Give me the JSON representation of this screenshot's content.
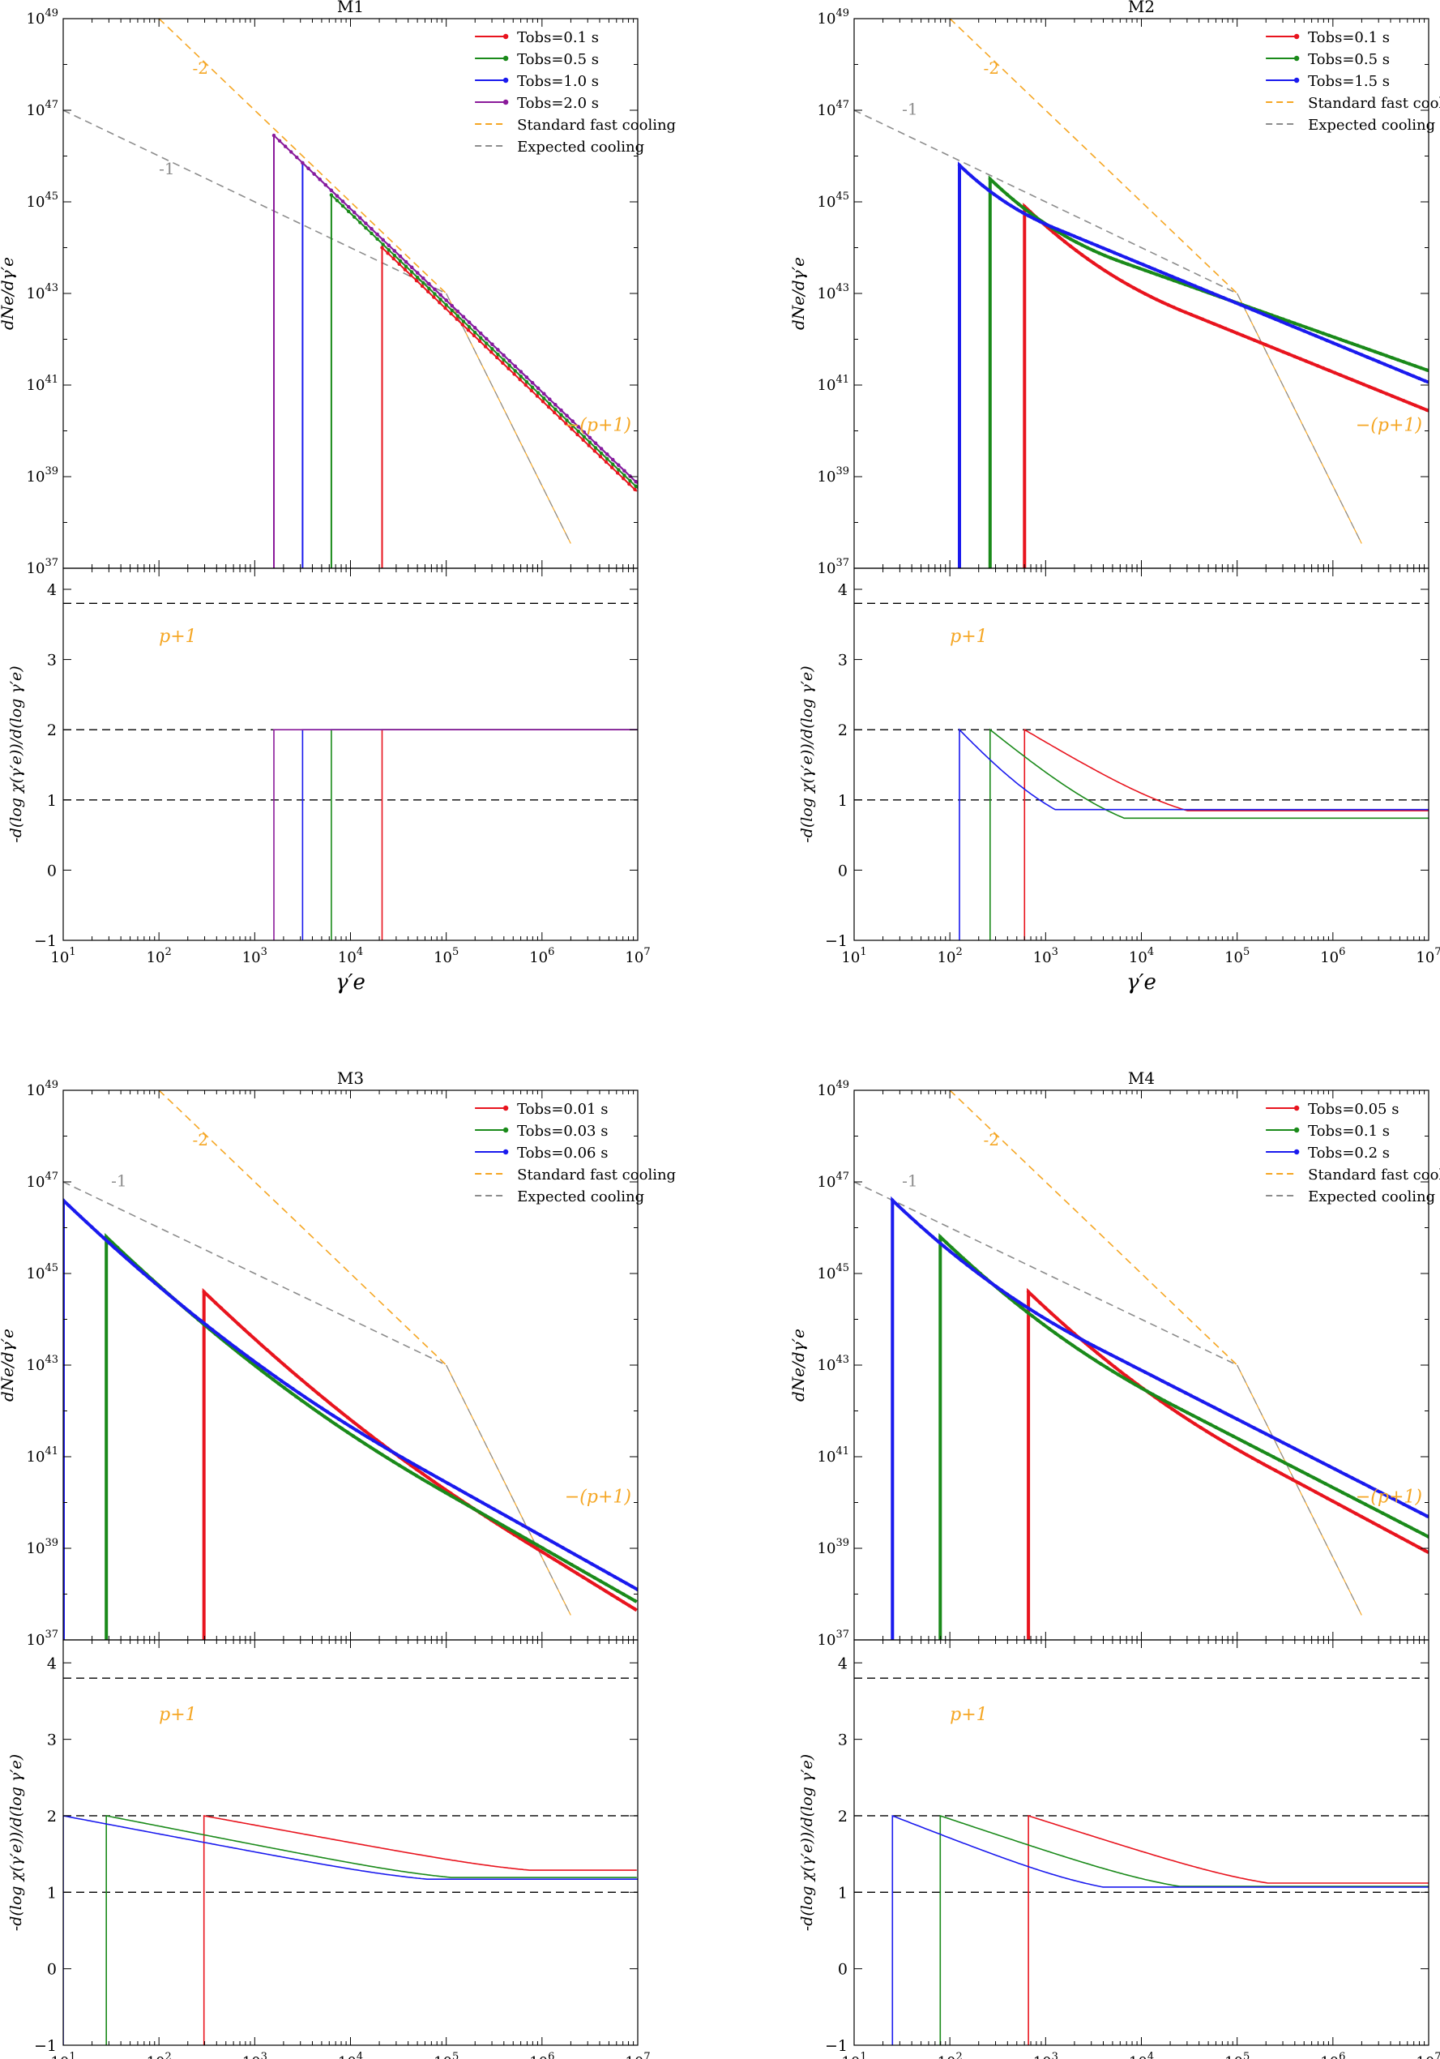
{
  "figure": {
    "x_label": "γ′e",
    "top_y_label": "dNe/dγ′e",
    "bottom_y_label": "-d(log χ(γ′e))/d(log γ′e)",
    "x_range_log10": [
      1,
      7
    ],
    "top_y_range_log10": [
      37,
      49
    ],
    "bottom_y_range": [
      -1,
      4.3
    ],
    "ref_lines": [
      1,
      2,
      3.8
    ],
    "annotations": {
      "slope_m2": "-2",
      "slope_m1": "-1",
      "slope_p": "−(p+1)",
      "bottom": "p+1"
    },
    "legend_extra": [
      "Standard fast cooling",
      "Expected cooling"
    ]
  },
  "colors": {
    "red": "#e8141e",
    "green": "#1a8a1a",
    "blue": "#1a1aee",
    "purple": "#8a1a9a",
    "orange": "#f5a623",
    "gray": "#8c8c8c"
  },
  "chart_data": [
    {
      "type": "line",
      "title": "M1",
      "series": [
        {
          "name": "Tobs=0.1 s",
          "color": "red",
          "gmin_log": 4.33,
          "peak_log": 44.0,
          "slope1": -2,
          "d_log": 1.6
        },
        {
          "name": "Tobs=0.5 s",
          "color": "green",
          "gmin_log": 3.8,
          "peak_log": 45.15,
          "slope1": -2,
          "d_log": 0.8
        },
        {
          "name": "Tobs=1.0 s",
          "color": "blue",
          "gmin_log": 3.5,
          "peak_log": 45.85,
          "slope1": -2,
          "d_log": 0.8
        },
        {
          "name": "Tobs=2.0 s",
          "color": "purple",
          "gmin_log": 3.2,
          "peak_log": 46.45,
          "slope1": -2,
          "d_log": 0.8
        }
      ]
    },
    {
      "type": "line",
      "title": "M2",
      "series": [
        {
          "name": "Tobs=0.1 s",
          "color": "red",
          "gmin_log": 2.78,
          "peak_log": 44.9,
          "slope1": -0.6,
          "d_log": 1.7
        },
        {
          "name": "Tobs=0.5 s",
          "color": "green",
          "gmin_log": 2.42,
          "peak_log": 45.5,
          "slope1": -0.4,
          "d_log": 1.4
        },
        {
          "name": "Tobs=1.5 s",
          "color": "blue",
          "gmin_log": 2.1,
          "peak_log": 45.8,
          "slope1": -0.4,
          "d_log": 1.0
        }
      ]
    },
    {
      "type": "line",
      "title": "M3",
      "series": [
        {
          "name": "Tobs=0.01 s",
          "color": "red",
          "gmin_log": 2.47,
          "peak_log": 44.6,
          "slope1": -1.22,
          "d_log": 3.4
        },
        {
          "name": "Tobs=0.03 s",
          "color": "green",
          "gmin_log": 1.45,
          "peak_log": 45.8,
          "slope1": -1.12,
          "d_log": 3.6
        },
        {
          "name": "Tobs=0.06 s",
          "color": "blue",
          "gmin_log": 1.0,
          "peak_log": 46.6,
          "slope1": -1.1,
          "d_log": 3.8
        }
      ]
    },
    {
      "type": "line",
      "title": "M4",
      "series": [
        {
          "name": "Tobs=0.05 s",
          "color": "red",
          "gmin_log": 2.82,
          "peak_log": 44.6,
          "slope1": -1.0,
          "d_log": 2.5
        },
        {
          "name": "Tobs=0.1 s",
          "color": "green",
          "gmin_log": 1.9,
          "peak_log": 45.8,
          "slope1": -0.95,
          "d_log": 2.5
        },
        {
          "name": "Tobs=0.2 s",
          "color": "blue",
          "gmin_log": 1.4,
          "peak_log": 46.6,
          "slope1": -0.92,
          "d_log": 2.2
        }
      ]
    }
  ]
}
